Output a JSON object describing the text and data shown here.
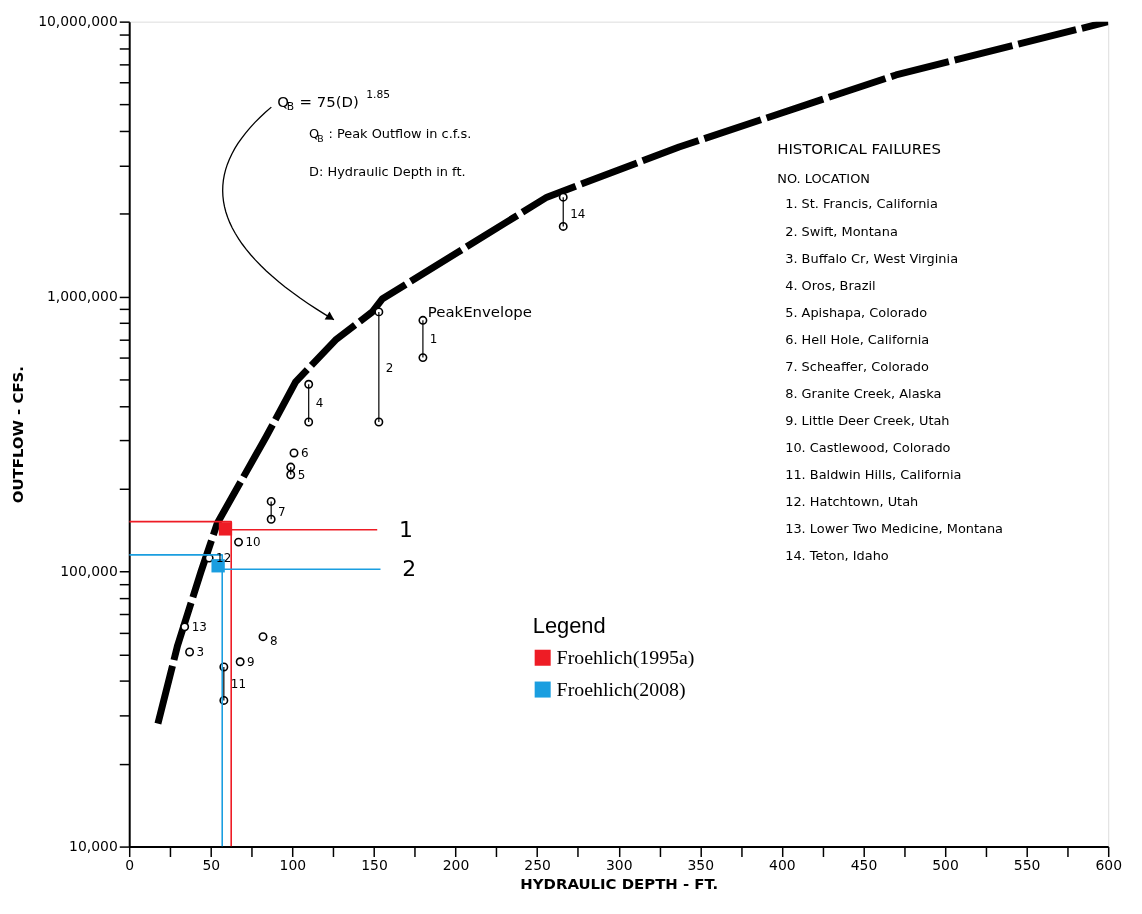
{
  "chart_data": {
    "type": "scatter",
    "xlabel": "HYDRAULIC DEPTH - FT.",
    "ylabel": "OUTFLOW - CFS.",
    "legend_title": "Legend",
    "xlim": [
      0,
      600
    ],
    "ylim": [
      10000,
      10000000
    ],
    "log": "y",
    "legend": "bottom",
    "xticks": [
      0,
      {
        "value": 25,
        "label": null
      },
      50,
      {
        "value": 75,
        "label": null
      },
      100,
      {
        "value": 125,
        "label": null
      },
      150,
      {
        "value": 175,
        "label": null
      },
      200,
      {
        "value": 225,
        "label": null
      },
      250,
      {
        "value": 275,
        "label": null
      },
      300,
      {
        "value": 325,
        "label": null
      },
      350,
      {
        "value": 375,
        "label": null
      },
      400,
      {
        "value": 425,
        "label": null
      },
      450,
      {
        "value": 475,
        "label": null
      },
      500,
      {
        "value": 525,
        "label": null
      },
      550,
      {
        "value": 575,
        "label": null
      },
      600
    ],
    "yticks": [
      {
        "value": 10000,
        "label": "10,000"
      },
      {
        "value": 20000,
        "label": null
      },
      {
        "value": 30000,
        "label": null
      },
      {
        "value": 40000,
        "label": null
      },
      {
        "value": 50000,
        "label": null
      },
      {
        "value": 60000,
        "label": null
      },
      {
        "value": 70000,
        "label": null
      },
      {
        "value": 80000,
        "label": null
      },
      {
        "value": 90000,
        "label": null
      },
      {
        "value": 100000,
        "label": "100,000"
      },
      {
        "value": 200000,
        "label": null
      },
      {
        "value": 300000,
        "label": null
      },
      {
        "value": 400000,
        "label": null
      },
      {
        "value": 500000,
        "label": null
      },
      {
        "value": 600000,
        "label": null
      },
      {
        "value": 700000,
        "label": null
      },
      {
        "value": 800000,
        "label": null
      },
      {
        "value": 900000,
        "label": null
      },
      {
        "value": 1000000,
        "label": "1,000,000"
      },
      {
        "value": 2000000,
        "label": null
      },
      {
        "value": 3000000,
        "label": null
      },
      {
        "value": 4000000,
        "label": null
      },
      {
        "value": 5000000,
        "label": null
      },
      {
        "value": 6000000,
        "label": null
      },
      {
        "value": 7000000,
        "label": null
      },
      {
        "value": 8000000,
        "label": null
      },
      {
        "value": 9000000,
        "label": null
      },
      {
        "value": 10000000,
        "label": "10,000,000"
      }
    ],
    "series": [
      {
        "name": "PeakEnvelope",
        "type": "line",
        "line_style": "dashed",
        "color": "#000000",
        "x": [
          17.6,
          29.7,
          44,
          54,
          84,
          102,
          127,
          149,
          155,
          256,
          337,
          470,
          600
        ],
        "values": [
          28000,
          54000,
          100000,
          150000,
          310000,
          490000,
          700000,
          880000,
          980000,
          2300000,
          3500000,
          6400000,
          10000000
        ]
      },
      {
        "marker": "circle",
        "color": "#000000",
        "x": [
          266,
          266,
          153,
          153,
          180,
          180,
          110,
          110,
          101,
          99,
          99,
          87,
          87,
          67,
          49,
          34,
          37,
          82,
          68,
          58,
          58
        ],
        "values": [
          2300000,
          1800000,
          880000,
          350000,
          820000,
          600000,
          480000,
          350000,
          270000,
          240000,
          225000,
          180000,
          155000,
          128000,
          112000,
          63000,
          51000,
          58000,
          47000,
          45000,
          34000
        ],
        "errors": [
          [
            1800000,
            2300000
          ],
          null,
          [
            350000,
            880000
          ],
          null,
          [
            600000,
            820000
          ],
          null,
          [
            350000,
            480000
          ],
          null,
          null,
          [
            225000,
            240000
          ],
          null,
          [
            155000,
            180000
          ],
          null,
          null,
          null,
          null,
          null,
          null,
          null,
          [
            34000,
            45000
          ],
          null
        ]
      },
      {
        "name": "Froehlich(1995a)",
        "marker": "square",
        "color": "#ee1c25",
        "x": [
          59
        ],
        "values": [
          143000
        ]
      },
      {
        "type": "line",
        "line_style": "solid",
        "color": "#ee1c25",
        "x": [
          0,
          62.5,
          62.5
        ],
        "values": [
          152000,
          152000,
          10000
        ]
      },
      {
        "type": "line",
        "line_style": "solid",
        "color": "#ee1c25",
        "x": [
          62.5,
          152
        ],
        "values": [
          142000,
          142000
        ]
      },
      {
        "name": "Froehlich(2008)",
        "marker": "square",
        "color": "#1a9ee0",
        "x": [
          54.5
        ],
        "values": [
          105000
        ]
      },
      {
        "type": "line",
        "line_style": "solid",
        "color": "#1a9ee0",
        "x": [
          0,
          57,
          57
        ],
        "values": [
          115000,
          115000,
          10000
        ]
      },
      {
        "type": "line",
        "line_style": "solid",
        "color": "#1a9ee0",
        "x": [
          57,
          154
        ],
        "values": [
          102000,
          102000
        ]
      }
    ],
    "annotations": [
      "Q$_{B}$ = 75(D)$^{1.85}$",
      "Q$_{B}$ : Peak Outflow in c.f.s.",
      "D: Hydraulic Depth in ft.",
      "HISTORICAL FAILURES",
      "NO.   LOCATION",
      "1.  St. Francis, California",
      "2.  Swift, Montana",
      "3.  Buffalo Cr, West Virginia",
      "4.  Oros, Brazil",
      "5.  Apishapa, Colorado",
      "6.  Hell Hole, California",
      "7.  Scheaffer, Colorado",
      "8.  Granite Creek, Alaska",
      "9.  Little Deer Creek, Utah",
      "10.  Castlewood, Colorado",
      "11.  Baldwin Hills, California",
      "12.  Hatchtown, Utah",
      "13.  Lower Two Medicine, Montana",
      "14.  Teton, Idaho",
      {
        "text": "14",
        "x": 266,
        "y": 2000000
      },
      {
        "text": "2",
        "x": 153,
        "y": 550000
      },
      {
        "text": "1",
        "x": 180,
        "y": 700000
      },
      {
        "text": "4",
        "x": 110,
        "y": 410000
      },
      {
        "text": "6",
        "x": 101,
        "y": 270000
      },
      {
        "text": "5",
        "x": 99,
        "y": 225000
      },
      {
        "text": "7",
        "x": 87,
        "y": 165000
      },
      {
        "text": "10",
        "x": 67,
        "y": 128000
      },
      {
        "text": "12",
        "x": 49,
        "y": 112000
      },
      {
        "text": "13",
        "x": 34,
        "y": 63000
      },
      {
        "text": "3",
        "x": 37,
        "y": 51000
      },
      {
        "text": "8",
        "x": 82,
        "y": 56000
      },
      {
        "text": "9",
        "x": 68,
        "y": 47000
      },
      {
        "text": "11",
        "x": 58,
        "y": 39000
      },
      {
        "text": "1",
        "x": 152,
        "y": 142000
      },
      {
        "text": "2",
        "x": 154,
        "y": 102000
      }
    ]
  }
}
